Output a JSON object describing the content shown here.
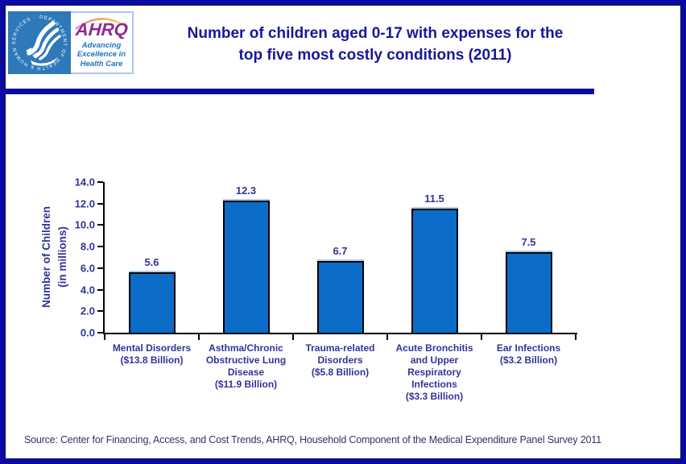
{
  "header": {
    "logo": {
      "hhs_ring_text": "DEPARTMENT OF HEALTH & HUMAN SERVICES · USA ·",
      "ahrq_acronym": "AHRQ",
      "ahrq_tagline_line1": "Advancing",
      "ahrq_tagline_line2": "Excellence in",
      "ahrq_tagline_line3": "Health Care"
    },
    "title_line1": "Number of children aged 0-17 with expenses for the",
    "title_line2": "top five most costly conditions (2011)"
  },
  "chart_data": {
    "type": "bar",
    "title": "Number of children aged 0-17 with expenses for the top five most costly conditions (2011)",
    "ylabel_line1": "Number of Children",
    "ylabel_line2": "(in millions)",
    "xlabel": "",
    "ylim": [
      0,
      14
    ],
    "ytick_step": 2,
    "ytick_decimals": 1,
    "grid": false,
    "legend": false,
    "categories": [
      "Mental Disorders ($13.8 Billion)",
      "Asthma/Chronic Obstructive Lung Disease ($11.9 Billion)",
      "Trauma-related Disorders ($5.8 Billion)",
      "Acute Bronchitis and Upper Respiratory Infections ($3.3 Billion)",
      "Ear Infections ($3.2 Billion)"
    ],
    "category_lines": [
      [
        "Mental Disorders",
        "($13.8 Billion)"
      ],
      [
        "Asthma/Chronic",
        "Obstructive Lung",
        "Disease",
        "($11.9 Billion)"
      ],
      [
        "Trauma-related",
        "Disorders",
        "($5.8 Billion)"
      ],
      [
        "Acute Bronchitis",
        "and Upper",
        "Respiratory",
        "Infections",
        "($3.3 Billion)"
      ],
      [
        "Ear Infections",
        "($3.2 Billion)"
      ]
    ],
    "values": [
      5.6,
      12.3,
      6.7,
      11.5,
      7.5
    ],
    "value_decimals": 1
  },
  "footer": {
    "source": "Source: Center for Financing, Access, and Cost Trends, AHRQ, Household Component of the Medical Expenditure Panel Survey 2011"
  },
  "icons": {
    "hhs_seal": "hhs-eagle-seal-icon",
    "ahrq_arc": "ahrq-rainbow-arc-icon"
  },
  "colors": {
    "frame_navy": "#0A0AA0",
    "title_navy": "#17179C",
    "bar_fill": "#0B6DC7",
    "bar_border": "#000000",
    "chart_label_blue": "#333399",
    "hhs_blue": "#2E79BA",
    "ahrq_purple": "#8C2B90",
    "tagline_blue": "#1B75BC",
    "source_blue": "#333366"
  }
}
